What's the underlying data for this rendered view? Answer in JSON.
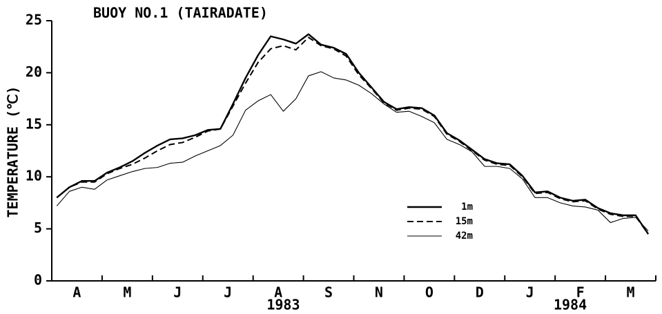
{
  "chart_data": {
    "type": "line",
    "title": "BUOY NO.1 (TAIRADATE)",
    "y_label": "TEMPERATURE (℃)",
    "x": [
      0.1,
      0.35,
      0.6,
      0.85,
      1.1,
      1.35,
      1.6,
      1.85,
      2.1,
      2.35,
      2.6,
      2.85,
      3.1,
      3.35,
      3.6,
      3.85,
      4.1,
      4.35,
      4.6,
      4.85,
      5.1,
      5.35,
      5.6,
      5.85,
      6.1,
      6.35,
      6.6,
      6.85,
      7.1,
      7.35,
      7.6,
      7.85,
      8.1,
      8.35,
      8.6,
      8.85,
      9.1,
      9.35,
      9.6,
      9.85,
      10.1,
      10.35,
      10.6,
      10.85,
      11.1,
      11.35,
      11.6,
      11.85
    ],
    "series": [
      {
        "name": "1m",
        "color": "#000000",
        "style": "solid",
        "width": 2.4,
        "values": [
          8.0,
          9.0,
          9.6,
          9.6,
          10.4,
          10.9,
          11.5,
          12.3,
          13.0,
          13.6,
          13.7,
          14.0,
          14.5,
          14.6,
          17.0,
          19.5,
          21.7,
          23.5,
          23.2,
          22.8,
          23.7,
          22.7,
          22.4,
          21.8,
          20.0,
          18.6,
          17.2,
          16.5,
          16.7,
          16.6,
          15.9,
          14.2,
          13.5,
          12.6,
          11.7,
          11.3,
          11.2,
          10.1,
          8.5,
          8.6,
          8.0,
          7.7,
          7.8,
          7.0,
          6.5,
          6.3,
          6.3,
          4.5
        ]
      },
      {
        "name": "15m",
        "color": "#000000",
        "style": "dashed",
        "width": 2.0,
        "values": [
          8.0,
          9.0,
          9.5,
          9.5,
          10.3,
          10.8,
          11.2,
          11.8,
          12.5,
          13.1,
          13.3,
          13.8,
          14.4,
          14.6,
          16.8,
          19.0,
          21.0,
          22.3,
          22.6,
          22.2,
          23.4,
          22.6,
          22.3,
          21.6,
          19.8,
          18.5,
          17.1,
          16.4,
          16.6,
          16.5,
          15.8,
          14.1,
          13.4,
          12.5,
          11.6,
          11.2,
          11.1,
          10.0,
          8.4,
          8.5,
          7.9,
          7.6,
          7.7,
          6.9,
          6.4,
          6.2,
          6.2,
          4.5
        ]
      },
      {
        "name": "42m",
        "color": "#000000",
        "style": "solid",
        "width": 1.1,
        "values": [
          7.2,
          8.6,
          9.0,
          8.8,
          9.7,
          10.1,
          10.5,
          10.8,
          10.9,
          11.3,
          11.4,
          12.0,
          12.5,
          13.0,
          14.0,
          16.4,
          17.3,
          17.9,
          16.3,
          17.5,
          19.7,
          20.1,
          19.5,
          19.3,
          18.8,
          18.0,
          17.0,
          16.2,
          16.3,
          15.8,
          15.2,
          13.6,
          13.1,
          12.4,
          11.0,
          11.0,
          10.8,
          9.8,
          8.0,
          8.0,
          7.5,
          7.2,
          7.1,
          6.8,
          5.6,
          6.0,
          6.1,
          4.8
        ]
      }
    ],
    "xlim": [
      0,
      12
    ],
    "xticks": [
      {
        "value": 0.5,
        "label": "A"
      },
      {
        "value": 1.5,
        "label": "M"
      },
      {
        "value": 2.5,
        "label": "J"
      },
      {
        "value": 3.5,
        "label": "J"
      },
      {
        "value": 4.5,
        "label": "A"
      },
      {
        "value": 5.5,
        "label": "S"
      },
      {
        "value": 6.5,
        "label": "N"
      },
      {
        "value": 7.5,
        "label": "O"
      },
      {
        "value": 8.5,
        "label": "D"
      },
      {
        "value": 9.5,
        "label": "J"
      },
      {
        "value": 10.5,
        "label": "F"
      },
      {
        "value": 11.5,
        "label": "M"
      }
    ],
    "x_minor_ticks": [
      0,
      1,
      2,
      3,
      4,
      5,
      6,
      7,
      8,
      9,
      10,
      11,
      12
    ],
    "year_labels": [
      {
        "text": "1983",
        "x": 4.6
      },
      {
        "text": "1984",
        "x": 10.3
      }
    ],
    "ylim": [
      0,
      25
    ],
    "yticks": [
      0,
      5,
      10,
      15,
      20,
      25
    ],
    "grid": false
  }
}
